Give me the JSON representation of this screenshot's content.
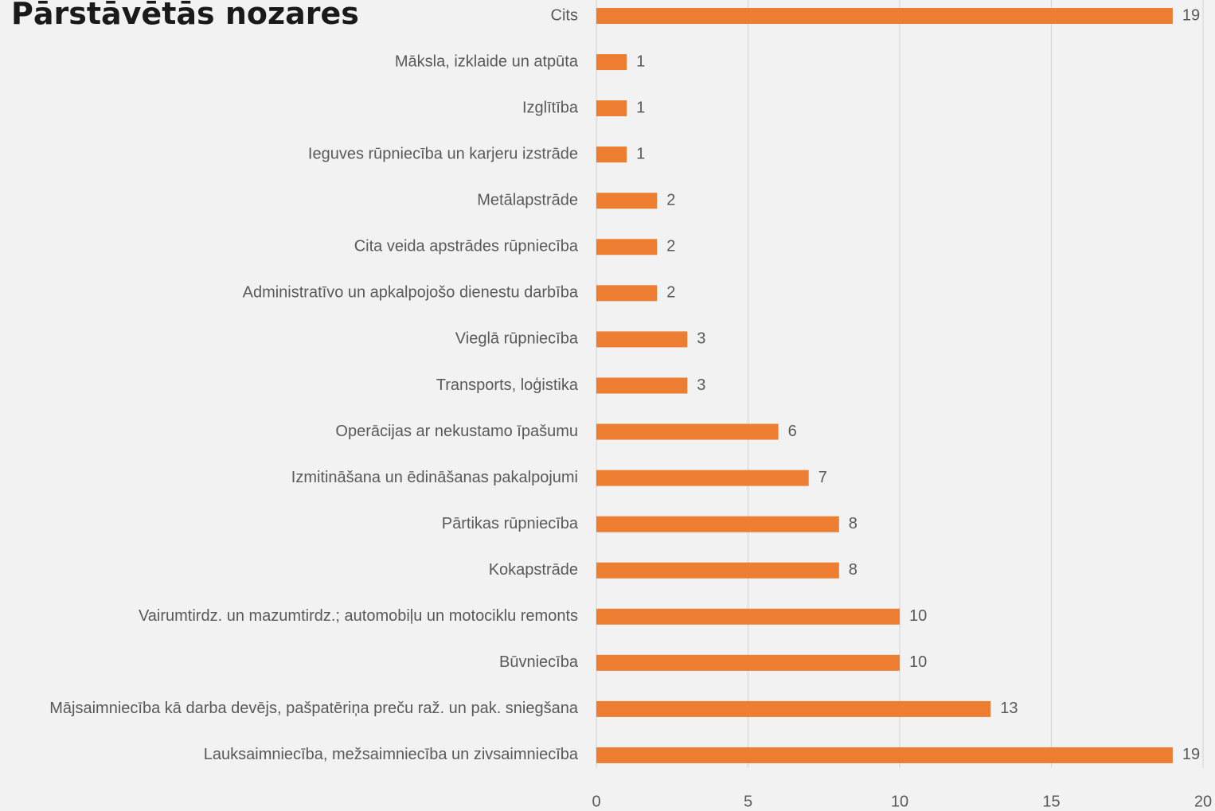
{
  "chart_data": {
    "type": "bar",
    "orientation": "horizontal",
    "title": "Pārstāvētās nozares",
    "categories": [
      "Cits",
      "Māksla, izklaide un atpūta",
      "Izglītība",
      "Ieguves rūpniecība un karjeru izstrāde",
      "Metālapstrāde",
      "Cita veida apstrādes rūpniecība",
      "Administratīvo un apkalpojošo dienestu darbība",
      "Vieglā rūpniecība",
      "Transports, loģistika",
      "Operācijas ar nekustamo īpašumu",
      "Izmitināšana un ēdināšanas pakalpojumi",
      "Pārtikas rūpniecība",
      "Kokapstrāde",
      "Vairumtirdz. un mazumtirdz.; automobiļu un motociklu remonts",
      "Būvniecība",
      "Mājsaimniecība kā darba devējs, pašpatēriņa preču raž. un pak. sniegšana",
      "Lauksaimniecība, mežsaimniecība un zivsaimniecība"
    ],
    "values": [
      19,
      1,
      1,
      1,
      2,
      2,
      2,
      3,
      3,
      6,
      7,
      8,
      8,
      10,
      10,
      13,
      19
    ],
    "color": "#ed7d31",
    "xlim": [
      0,
      20
    ],
    "xticks": [
      0,
      5,
      10,
      15,
      20
    ],
    "grid": true
  }
}
